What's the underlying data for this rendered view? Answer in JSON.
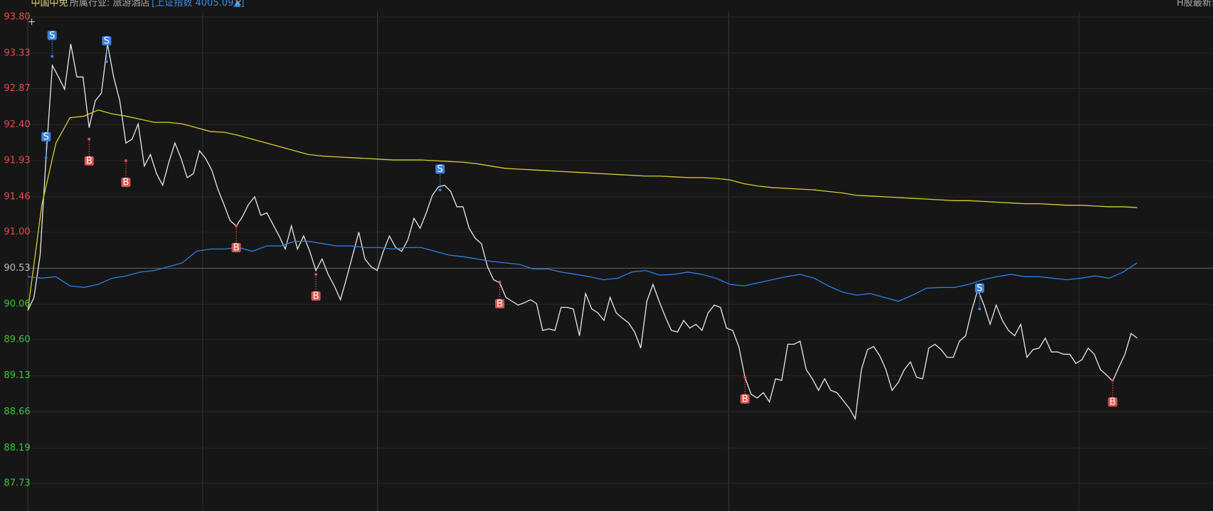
{
  "header": {
    "name": "中国中免",
    "industry": "所属行业: 旅游酒店",
    "index_quote": "[上证指数 4005.09▲]",
    "close": "×",
    "h_share": "H股最新:"
  },
  "chart_data": {
    "type": "line",
    "ylim": [
      87.37,
      93.8
    ],
    "yticks": [
      {
        "value": 93.8,
        "label": "93.80"
      },
      {
        "value": 93.33,
        "label": "93.33"
      },
      {
        "value": 92.87,
        "label": "92.87"
      },
      {
        "value": 92.4,
        "label": "92.40"
      },
      {
        "value": 91.93,
        "label": "91.93"
      },
      {
        "value": 91.46,
        "label": "91.46"
      },
      {
        "value": 91.0,
        "label": "91.00"
      },
      {
        "value": 90.53,
        "label": "90.53"
      },
      {
        "value": 90.06,
        "label": "90.06"
      },
      {
        "value": 89.6,
        "label": "89.60"
      },
      {
        "value": 89.13,
        "label": "89.13"
      },
      {
        "value": 88.66,
        "label": "88.66"
      },
      {
        "value": 88.19,
        "label": "88.19"
      },
      {
        "value": 87.73,
        "label": "87.73"
      }
    ],
    "grid": true,
    "reference_line": 90.53,
    "axis_colors": {
      "up": "#e84a4a",
      "down": "#3cc43c",
      "flat": "#bbbbbb"
    },
    "series": [
      {
        "color": "#e8e8e8",
        "values": [
          89.98,
          90.15,
          90.7,
          92.01,
          93.17,
          93.02,
          92.86,
          93.45,
          93.02,
          93.02,
          92.36,
          92.71,
          92.81,
          93.45,
          93.02,
          92.71,
          92.16,
          92.21,
          92.41,
          91.86,
          92.01,
          91.76,
          91.61,
          91.91,
          92.16,
          91.96,
          91.71,
          91.76,
          92.06,
          91.96,
          91.81,
          91.56,
          91.36,
          91.15,
          91.08,
          91.2,
          91.36,
          91.46,
          91.22,
          91.25,
          91.1,
          90.95,
          90.78,
          91.08,
          90.78,
          90.95,
          90.75,
          90.5,
          90.65,
          90.45,
          90.3,
          90.12,
          90.4,
          90.7,
          91.0,
          90.65,
          90.55,
          90.5,
          90.75,
          90.95,
          90.8,
          90.75,
          90.9,
          91.18,
          91.05,
          91.25,
          91.48,
          91.59,
          91.61,
          91.53,
          91.33,
          91.33,
          91.05,
          90.92,
          90.85,
          90.55,
          90.38,
          90.34,
          90.15,
          90.1,
          90.05,
          90.08,
          90.12,
          90.07,
          89.72,
          89.74,
          89.72,
          90.02,
          90.02,
          90.0,
          89.65,
          90.2,
          90.0,
          89.95,
          89.85,
          90.15,
          89.95,
          89.88,
          89.82,
          89.7,
          89.49,
          90.1,
          90.32,
          90.1,
          89.9,
          89.72,
          89.7,
          89.85,
          89.75,
          89.8,
          89.72,
          89.95,
          90.05,
          90.02,
          89.75,
          89.72,
          89.51,
          89.11,
          88.89,
          88.84,
          88.91,
          88.79,
          89.09,
          89.07,
          89.54,
          89.54,
          89.58,
          89.21,
          89.09,
          88.94,
          89.09,
          88.94,
          88.91,
          88.81,
          88.71,
          88.57,
          89.21,
          89.47,
          89.51,
          89.39,
          89.21,
          88.94,
          89.04,
          89.21,
          89.31,
          89.11,
          89.09,
          89.49,
          89.54,
          89.47,
          89.37,
          89.37,
          89.58,
          89.65,
          89.98,
          90.25,
          90.05,
          89.8,
          90.05,
          89.85,
          89.72,
          89.65,
          89.8,
          89.37,
          89.47,
          89.49,
          89.62,
          89.44,
          89.44,
          89.41,
          89.41,
          89.29,
          89.34,
          89.49,
          89.41,
          89.21,
          89.14,
          89.06,
          89.24,
          89.41,
          89.68,
          89.62
        ]
      },
      {
        "color": "#d6cf2e",
        "values": [
          89.98,
          91.36,
          92.16,
          92.49,
          92.51,
          92.59,
          92.54,
          92.51,
          92.47,
          92.43,
          92.43,
          92.41,
          92.36,
          92.31,
          92.3,
          92.26,
          92.21,
          92.16,
          92.11,
          92.06,
          92.01,
          91.99,
          91.98,
          91.97,
          91.96,
          91.95,
          91.94,
          91.94,
          91.94,
          91.93,
          91.92,
          91.91,
          91.89,
          91.86,
          91.83,
          91.82,
          91.81,
          91.8,
          91.79,
          91.78,
          91.77,
          91.76,
          91.75,
          91.74,
          91.73,
          91.73,
          91.72,
          91.71,
          91.71,
          91.7,
          91.68,
          91.63,
          91.6,
          91.58,
          91.57,
          91.56,
          91.55,
          91.53,
          91.51,
          91.48,
          91.47,
          91.46,
          91.45,
          91.44,
          91.43,
          91.42,
          91.41,
          91.41,
          91.4,
          91.39,
          91.38,
          91.37,
          91.37,
          91.36,
          91.35,
          91.35,
          91.34,
          91.33,
          91.33,
          91.32
        ]
      },
      {
        "color": "#2f7fe0",
        "values": [
          90.42,
          90.4,
          90.42,
          90.3,
          90.28,
          90.32,
          90.4,
          90.43,
          90.48,
          90.5,
          90.55,
          90.6,
          90.75,
          90.78,
          90.78,
          90.8,
          90.75,
          90.82,
          90.82,
          90.88,
          90.88,
          90.85,
          90.82,
          90.82,
          90.8,
          90.8,
          90.78,
          90.8,
          90.8,
          90.75,
          90.7,
          90.68,
          90.65,
          90.62,
          90.6,
          90.58,
          90.52,
          90.52,
          90.48,
          90.45,
          90.42,
          90.38,
          90.4,
          90.48,
          90.5,
          90.44,
          90.45,
          90.48,
          90.45,
          90.4,
          90.32,
          90.3,
          90.34,
          90.38,
          90.42,
          90.45,
          90.4,
          90.3,
          90.22,
          90.18,
          90.2,
          90.15,
          90.1,
          90.18,
          90.27,
          90.28,
          90.28,
          90.32,
          90.38,
          90.42,
          90.45,
          90.42,
          90.42,
          90.4,
          90.38,
          90.4,
          90.43,
          90.4,
          90.48,
          90.6
        ]
      }
    ],
    "markers": [
      {
        "name": "B",
        "color": "#d9534f",
        "values": [
          null,
          null,
          null,
          null,
          null,
          null,
          null,
          null,
          null,
          null,
          92.21,
          null,
          null,
          null,
          null,
          null,
          91.93,
          null,
          null,
          null,
          null,
          null,
          null,
          null,
          null,
          null,
          null,
          null,
          null,
          null,
          null,
          null,
          null,
          null,
          91.08,
          null,
          null,
          null,
          null,
          null,
          null,
          null,
          null,
          null,
          null,
          null,
          null,
          90.45,
          null,
          null,
          null,
          null,
          null,
          null,
          null,
          null,
          null,
          null,
          null,
          null,
          null,
          null,
          null,
          null,
          null,
          null,
          null,
          null,
          null,
          null,
          null,
          null,
          null,
          null,
          null,
          null,
          null,
          90.35,
          null,
          null,
          null,
          null,
          null,
          null,
          null,
          null,
          null,
          null,
          null,
          null,
          null,
          null,
          null,
          null,
          null,
          null,
          null,
          null,
          null,
          null,
          null,
          null,
          null,
          null,
          null,
          null,
          null,
          null,
          null,
          null,
          null,
          null,
          null,
          null,
          null,
          null,
          null,
          89.11,
          null,
          null,
          null,
          null,
          null,
          null,
          null,
          null,
          null,
          null,
          null,
          null,
          null,
          null,
          null,
          null,
          null,
          null,
          null,
          null,
          null,
          null,
          null,
          null,
          null,
          null,
          null,
          null,
          null,
          null,
          null,
          null,
          null,
          null,
          null,
          null,
          null,
          null,
          null,
          null,
          null,
          null,
          null,
          null,
          null,
          null,
          null,
          null,
          null,
          null,
          null,
          null,
          null,
          null,
          null,
          null,
          null,
          null,
          null,
          89.07,
          null,
          null,
          null,
          null
        ]
      },
      {
        "name": "S",
        "color": "#3a82e0",
        "values": [
          null,
          null,
          null,
          91.97,
          93.29,
          null,
          null,
          null,
          null,
          null,
          null,
          null,
          null,
          93.22,
          null,
          null,
          null,
          null,
          null,
          null,
          null,
          null,
          null,
          null,
          null,
          null,
          null,
          null,
          null,
          null,
          null,
          null,
          null,
          null,
          null,
          null,
          null,
          null,
          null,
          null,
          null,
          null,
          null,
          null,
          null,
          null,
          null,
          null,
          null,
          null,
          null,
          null,
          null,
          null,
          null,
          null,
          null,
          null,
          null,
          null,
          null,
          null,
          null,
          null,
          null,
          null,
          null,
          null,
          91.55,
          null,
          null,
          null,
          null,
          null,
          null,
          null,
          null,
          null,
          null,
          null,
          null,
          null,
          null,
          null,
          null,
          null,
          null,
          null,
          null,
          null,
          null,
          null,
          null,
          null,
          null,
          null,
          null,
          null,
          null,
          null,
          null,
          null,
          null,
          null,
          null,
          null,
          null,
          null,
          null,
          null,
          null,
          null,
          null,
          null,
          null,
          null,
          null,
          null,
          null,
          null,
          null,
          null,
          null,
          null,
          null,
          null,
          null,
          null,
          null,
          null,
          null,
          null,
          null,
          null,
          null,
          null,
          null,
          null,
          null,
          null,
          null,
          null,
          null,
          null,
          null,
          null,
          null,
          null,
          null,
          null,
          null,
          null,
          null,
          null,
          null,
          null,
          null,
          90.0,
          null,
          null,
          null,
          null,
          null,
          null,
          null,
          null,
          null,
          null,
          null,
          null,
          null,
          null,
          null,
          null,
          null,
          null,
          null,
          null,
          null,
          null,
          null,
          null,
          null,
          null
        ]
      }
    ]
  }
}
